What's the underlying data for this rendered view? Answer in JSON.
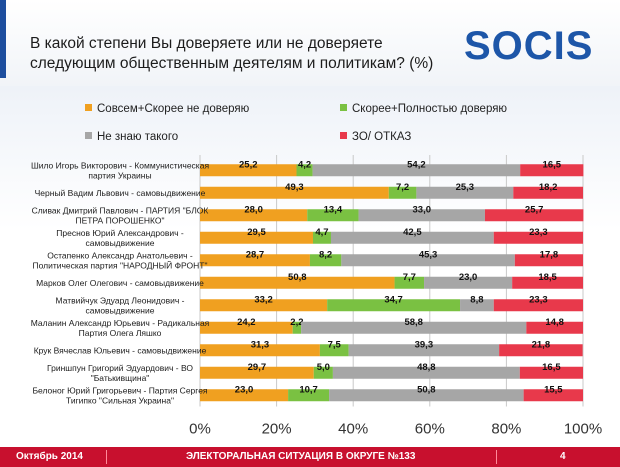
{
  "header": {
    "title_line1": "В какой степени Вы доверяете или не доверяете",
    "title_line2": "следующим общественным деятелям и политикам? (%)",
    "logo_text": "SOCIS",
    "brand_color": "#1d56a8"
  },
  "footer": {
    "date": "Октябрь 2014",
    "center": "ЭЛЕКТОРАЛЬНАЯ СИТУАЦИЯ В ОКРУГЕ №133",
    "page": "4",
    "color": "#c8102e"
  },
  "chart_data": {
    "type": "bar",
    "orientation": "horizontal",
    "stacked": true,
    "xlim": [
      0,
      100
    ],
    "ticks": [
      "0%",
      "20%",
      "40%",
      "60%",
      "80%",
      "100%"
    ],
    "legend_position": "top",
    "categories": [
      [
        "Шило Игорь Викторович - Коммунистическая",
        "партия Украины"
      ],
      [
        "Черный Вадим Львович - самовыдвижение"
      ],
      [
        "Сливак Дмитрий Павлович - ПАРТИЯ \"БЛОК",
        "ПЕТРА ПОРОШЕНКО\""
      ],
      [
        "Преснов Юрий Александрович -",
        "самовыдвижение"
      ],
      [
        "Остапенко Александр Анатольевич -",
        "Политическая партия \"НАРОДНЫЙ ФРОНТ\""
      ],
      [
        "Марков Олег Олегович - самовыдвижение"
      ],
      [
        "Матвийчук Эдуард Леонидович -",
        "самовыдвижение"
      ],
      [
        "Маланин Александр Юрьевич - Радикальная",
        "Партия Олега Ляшко"
      ],
      [
        "Крук Вячеслав Юльевич - самовыдвижение"
      ],
      [
        "Гриншпун Григорий Эдуардович - ВО",
        "\"Батькивщина\""
      ],
      [
        "Белоног Юрий Григорьевич - Партия Сергея",
        "Тигипко \"Сильная Украина\""
      ]
    ],
    "series": [
      {
        "name": "Совсем+Скорее не доверяю",
        "color": "#f0a020",
        "values": [
          25.2,
          49.3,
          28.0,
          29.5,
          28.7,
          50.8,
          33.2,
          24.2,
          31.3,
          29.7,
          23.0
        ]
      },
      {
        "name": "Скорее+Полностью доверяю",
        "color": "#7ac142",
        "values": [
          4.2,
          7.2,
          13.4,
          4.7,
          8.2,
          7.7,
          34.7,
          2.2,
          7.5,
          5.0,
          10.7
        ]
      },
      {
        "name": "Не знаю такого",
        "color": "#a6a6a6",
        "values": [
          54.2,
          25.3,
          33.0,
          42.5,
          45.3,
          23.0,
          8.8,
          58.8,
          39.3,
          48.8,
          50.8
        ]
      },
      {
        "name": "ЗО/ ОТКАЗ",
        "color": "#e8394b",
        "values": [
          16.5,
          18.2,
          25.7,
          23.3,
          17.8,
          18.5,
          23.3,
          14.8,
          21.8,
          16.5,
          15.5
        ]
      }
    ],
    "value_labels": [
      [
        "25,2",
        "4,2",
        "54,2",
        "16,5"
      ],
      [
        "49,3",
        "7,2",
        "25,3",
        "18,2"
      ],
      [
        "28,0",
        "13,4",
        "33,0",
        "25,7"
      ],
      [
        "29,5",
        "4,7",
        "42,5",
        "23,3"
      ],
      [
        "28,7",
        "8,2",
        "45,3",
        "17,8"
      ],
      [
        "50,8",
        "7,7",
        "23,0",
        "18,5"
      ],
      [
        "33,2",
        "34,7",
        "8,8",
        "23,3"
      ],
      [
        "24,2",
        "2,2",
        "58,8",
        "14,8"
      ],
      [
        "31,3",
        "7,5",
        "39,3",
        "21,8"
      ],
      [
        "29,7",
        "5,0",
        "48,8",
        "16,5"
      ],
      [
        "23,0",
        "10,7",
        "50,8",
        "15,5"
      ]
    ]
  }
}
